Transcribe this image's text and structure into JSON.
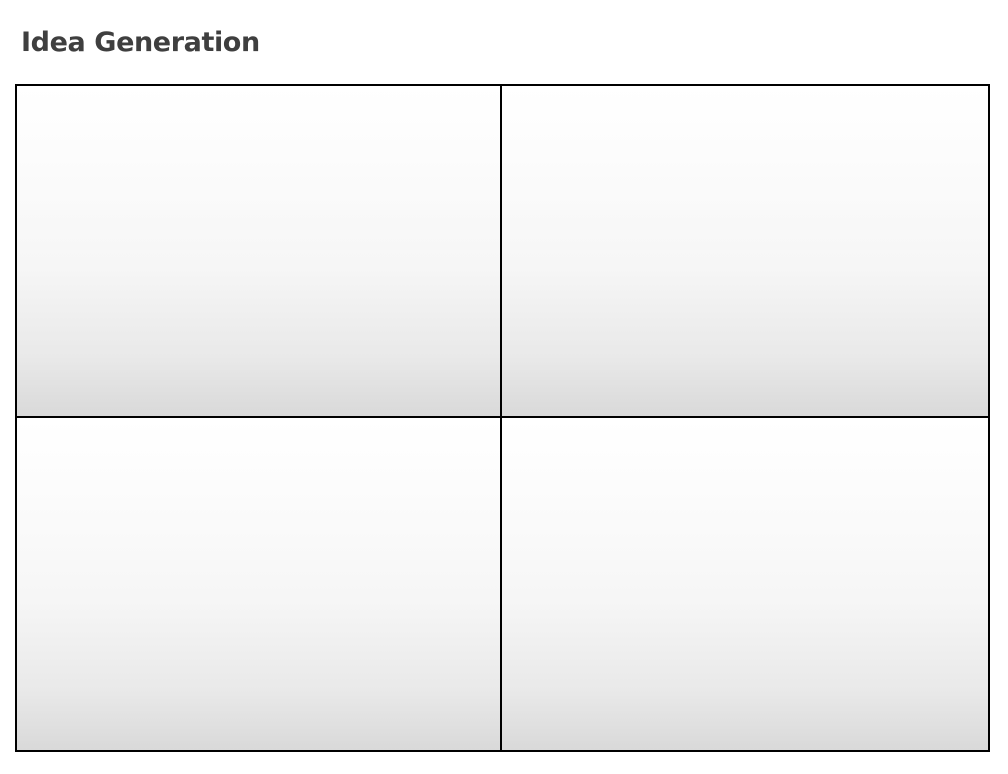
{
  "page": {
    "title": "Idea Generation"
  },
  "quadrants": [
    {
      "label": ""
    },
    {
      "label": ""
    },
    {
      "label": ""
    },
    {
      "label": ""
    }
  ],
  "colors": {
    "title": "#3f3f3f",
    "border": "#000000",
    "gradient_top": "#ffffff",
    "gradient_bottom": "#d9d9d9"
  }
}
